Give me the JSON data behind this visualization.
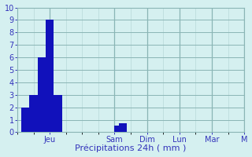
{
  "bar_values": [
    0,
    2,
    2,
    3,
    3,
    6,
    6,
    9,
    9,
    3,
    3,
    0,
    0,
    0,
    0,
    0,
    0,
    0,
    0,
    0,
    0,
    0,
    0,
    0,
    0.5,
    0.7,
    0.7,
    0,
    0,
    0,
    0,
    0,
    0,
    0,
    0,
    0,
    0,
    0,
    0,
    0,
    0,
    0,
    0,
    0,
    0,
    0,
    0,
    0
  ],
  "bar_color": "#1111bb",
  "bg_color": "#d5f0f0",
  "grid_major_color": "#8ab5b5",
  "grid_minor_color": "#b8d8d8",
  "axis_color": "#3333bb",
  "xlabel": "Précipitations 24h ( mm )",
  "ylim": [
    0,
    10
  ],
  "yticks": [
    0,
    1,
    2,
    3,
    4,
    5,
    6,
    7,
    8,
    9,
    10
  ],
  "n_bars": 48,
  "bars_per_day": 8,
  "day_labels": [
    "Jeu",
    "Sam",
    "Dim",
    "Lun",
    "Mar",
    "M"
  ],
  "day_tick_positions": [
    8,
    24,
    32,
    40,
    48,
    56
  ],
  "xlabel_fontsize": 8,
  "tick_fontsize": 7
}
